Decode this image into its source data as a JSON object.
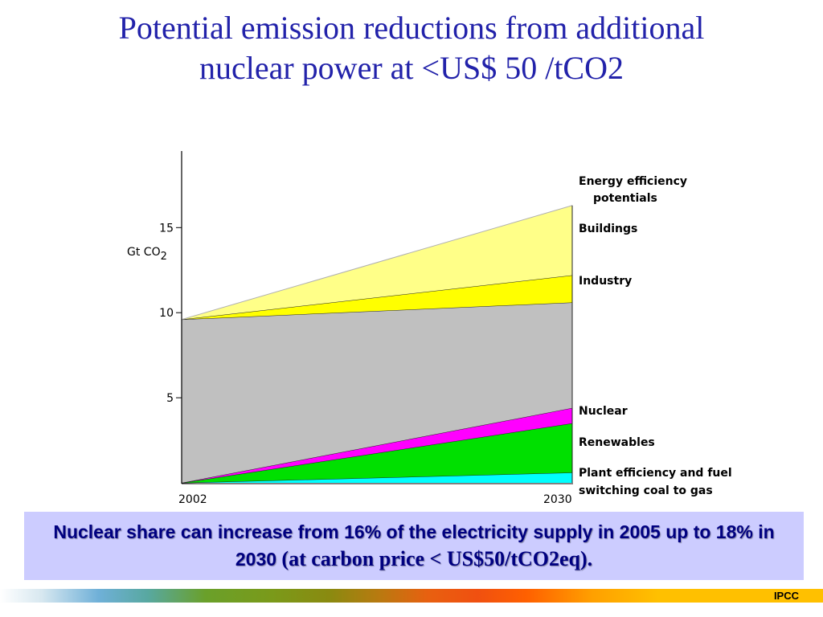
{
  "title": {
    "line1": "Potential emission reductions from additional",
    "line2": "nuclear power at <US$ 50 /tCO2"
  },
  "chart_data": {
    "type": "area",
    "ylabel_main": "Gt CO",
    "ylabel_sub": "2",
    "yticks": [
      "15",
      "10",
      "5"
    ],
    "ytick_values": [
      15,
      10,
      5
    ],
    "x": [
      "2002",
      "2030"
    ],
    "ylim": [
      0,
      19.5
    ],
    "series": [
      {
        "name": "Plant efficiency and fuel switching coal to gas",
        "values": [
          0.0,
          0.6
        ],
        "color": "#00ffff"
      },
      {
        "name": "Renewables",
        "values": [
          0.0,
          3.5
        ],
        "color": "#00e000"
      },
      {
        "name": "Nuclear",
        "values": [
          0.0,
          4.4
        ],
        "color": "#ff00ff"
      },
      {
        "name": "",
        "values": [
          9.6,
          10.6
        ],
        "color": "#c0c0c0"
      },
      {
        "name": "Industry",
        "values": [
          9.6,
          12.2
        ],
        "color": "#ffff00"
      },
      {
        "name": "Buildings",
        "values": [
          9.6,
          16.3
        ],
        "color": "#ffff88"
      }
    ],
    "labels": {
      "efficiency_line1": "Energy efficiency",
      "efficiency_line2": "potentials",
      "buildings": "Buildings",
      "industry": "Industry",
      "nuclear": "Nuclear",
      "renewables": "Renewables",
      "plant_line1": "Plant efficiency and fuel",
      "plant_line2": "switching coal to gas"
    }
  },
  "caption": {
    "part1": "Nuclear share can increase from 16% of the electricity supply in 2005 up to 18% in 2030 ",
    "part2": "(at carbon price < US$50/tCO2eq)."
  },
  "footer": {
    "label": "IPCC"
  }
}
